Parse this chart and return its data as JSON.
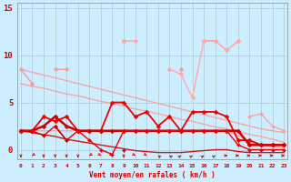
{
  "title": "",
  "xlabel": "Vent moyen/en rafales ( km/h )",
  "background_color": "#cceeff",
  "grid_color": "#aacccc",
  "x_ticks": [
    0,
    1,
    2,
    3,
    4,
    5,
    6,
    7,
    8,
    9,
    10,
    11,
    12,
    13,
    14,
    15,
    16,
    17,
    18,
    19,
    20,
    21,
    22,
    23
  ],
  "y_ticks": [
    0,
    5,
    10,
    15
  ],
  "ylim": [
    -1.0,
    15.5
  ],
  "xlim": [
    -0.3,
    23.3
  ],
  "series": [
    {
      "y": [
        8.5,
        8.2,
        7.9,
        7.6,
        7.3,
        7.0,
        6.7,
        6.4,
        6.1,
        5.8,
        5.5,
        5.2,
        4.9,
        4.6,
        4.3,
        4.0,
        3.7,
        3.4,
        3.1,
        2.8,
        2.5,
        2.2,
        2.0,
        1.8
      ],
      "color": "#ff9999",
      "lw": 1.0,
      "marker": null,
      "ms": 0,
      "alpha": 0.85
    },
    {
      "y": [
        7.0,
        6.7,
        6.5,
        6.2,
        5.9,
        5.7,
        5.4,
        5.1,
        4.9,
        4.6,
        4.3,
        4.1,
        3.8,
        3.5,
        3.2,
        3.0,
        2.7,
        2.4,
        2.2,
        1.9,
        1.6,
        1.4,
        1.1,
        0.8
      ],
      "color": "#ff9999",
      "lw": 1.0,
      "marker": null,
      "ms": 0,
      "alpha": 0.85
    },
    {
      "y": [
        2.0,
        2.0,
        2.0,
        2.0,
        2.0,
        2.0,
        2.0,
        2.0,
        2.0,
        2.0,
        2.0,
        2.0,
        2.0,
        2.0,
        2.0,
        2.0,
        2.0,
        2.0,
        2.0,
        1.5,
        0.8,
        0.5,
        0.3,
        0.2
      ],
      "color": "#ff9999",
      "lw": 1.0,
      "marker": null,
      "ms": 0,
      "alpha": 0.85
    },
    {
      "y": [
        null,
        null,
        null,
        null,
        null,
        null,
        null,
        null,
        null,
        null,
        null,
        null,
        null,
        null,
        null,
        null,
        null,
        null,
        null,
        null,
        3.5,
        3.8,
        2.5,
        2.0
      ],
      "color": "#ff9999",
      "lw": 1.0,
      "marker": "D",
      "ms": 2.0,
      "alpha": 0.85
    },
    {
      "y": [
        8.5,
        7.0,
        null,
        8.5,
        8.5,
        null,
        null,
        null,
        null,
        11.5,
        null,
        null,
        null,
        null,
        8.5,
        null,
        11.5,
        11.5,
        10.5,
        11.5,
        null,
        null,
        null,
        null
      ],
      "color": "#ff9999",
      "lw": 1.0,
      "marker": "D",
      "ms": 2.5,
      "alpha": 1.0
    },
    {
      "y": [
        null,
        null,
        null,
        null,
        null,
        null,
        null,
        null,
        null,
        11.5,
        11.5,
        null,
        null,
        8.5,
        8.0,
        5.5,
        11.5,
        11.5,
        10.5,
        11.5,
        null,
        null,
        null,
        null
      ],
      "color": "#ffaaaa",
      "lw": 1.0,
      "marker": "D",
      "ms": 2.5,
      "alpha": 1.0
    },
    {
      "y": [
        2.0,
        2.0,
        3.5,
        3.0,
        3.5,
        2.0,
        2.0,
        2.0,
        5.0,
        5.0,
        3.5,
        4.0,
        2.5,
        3.5,
        2.0,
        4.0,
        4.0,
        4.0,
        3.5,
        1.0,
        1.0,
        0.5,
        0.5,
        0.5
      ],
      "color": "#ee0000",
      "lw": 1.3,
      "marker": "D",
      "ms": 2.5,
      "alpha": 1.0
    },
    {
      "y": [
        2.0,
        2.0,
        2.5,
        3.5,
        2.5,
        2.0,
        2.0,
        2.0,
        2.0,
        2.0,
        2.0,
        2.0,
        2.0,
        2.0,
        2.0,
        2.0,
        2.0,
        2.0,
        2.0,
        2.0,
        0.5,
        0.5,
        0.5,
        0.5
      ],
      "color": "#cc0000",
      "lw": 1.8,
      "marker": "D",
      "ms": 2.5,
      "alpha": 1.0
    },
    {
      "y": [
        2.0,
        2.0,
        1.5,
        2.5,
        1.0,
        2.0,
        1.0,
        0.0,
        -0.5,
        2.0,
        2.0,
        2.0,
        2.0,
        2.0,
        2.0,
        2.0,
        2.0,
        2.0,
        2.0,
        0.5,
        0.0,
        0.0,
        0.0,
        0.0
      ],
      "color": "#ee0000",
      "lw": 1.0,
      "marker": "D",
      "ms": 2.0,
      "alpha": 1.0
    },
    {
      "y": [
        2.0,
        1.8,
        1.6,
        1.4,
        1.1,
        0.9,
        0.7,
        0.5,
        0.3,
        0.1,
        -0.1,
        -0.2,
        -0.3,
        -0.3,
        -0.3,
        -0.2,
        -0.1,
        0.0,
        0.0,
        -0.2,
        -0.3,
        -0.3,
        -0.3,
        -0.3
      ],
      "color": "#cc0000",
      "lw": 1.0,
      "marker": null,
      "ms": 0,
      "alpha": 0.9
    },
    {
      "y": [
        null,
        null,
        null,
        2.5,
        1.0,
        null,
        null,
        null,
        null,
        0.0,
        null,
        null,
        null,
        null,
        null,
        null,
        null,
        null,
        null,
        null,
        null,
        null,
        null,
        null
      ],
      "color": "#cc0000",
      "lw": 1.0,
      "marker": "D",
      "ms": 2.0,
      "alpha": 1.0
    }
  ],
  "wind_arrows": {
    "x": [
      0,
      1,
      2,
      3,
      4,
      5,
      6,
      7,
      8,
      9,
      10,
      11,
      12,
      13,
      14,
      15,
      16,
      17,
      18,
      19,
      20,
      21,
      22,
      23
    ],
    "angles": [
      180,
      225,
      180,
      180,
      180,
      180,
      225,
      135,
      135,
      180,
      135,
      135,
      315,
      315,
      45,
      45,
      45,
      45,
      90,
      90,
      90,
      90,
      90,
      90
    ],
    "color": "#cc0000"
  }
}
